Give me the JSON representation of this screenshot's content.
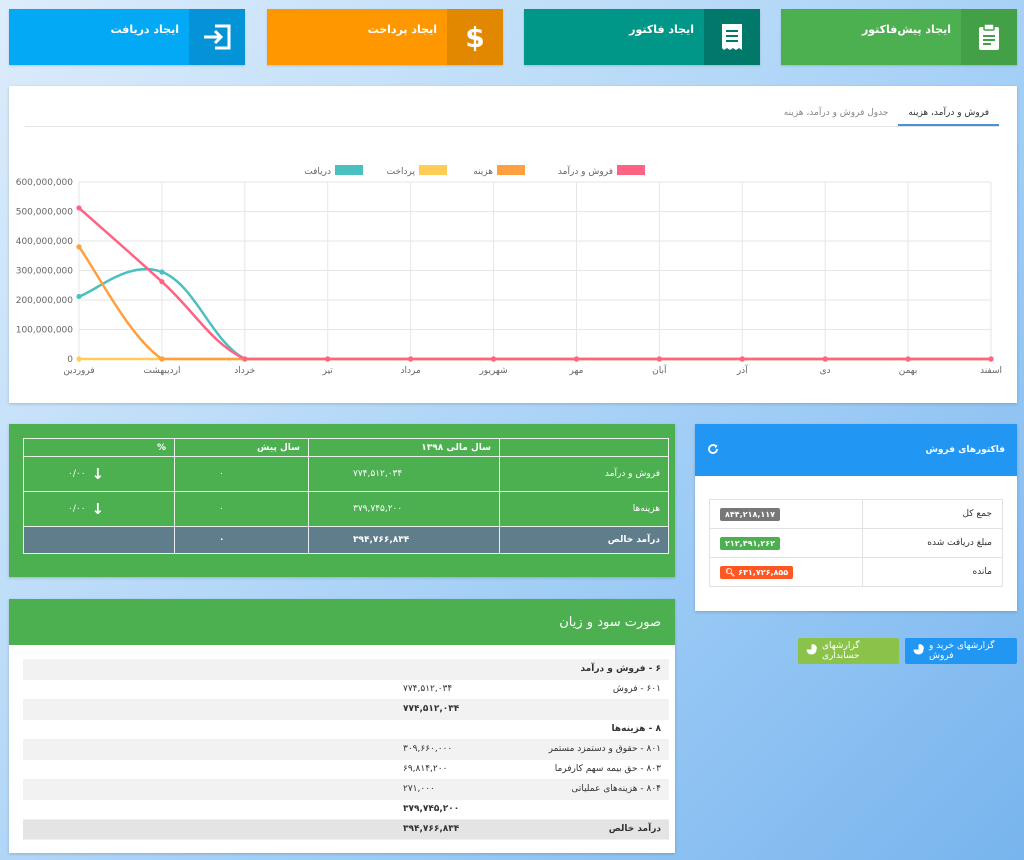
{
  "quick_actions": {
    "create_proforma": {
      "label": "ایجاد پیش‌فاکتور",
      "icon": "clipboard-icon"
    },
    "create_invoice": {
      "label": "ایجاد فاکتور",
      "icon": "receipt-icon"
    },
    "create_payment": {
      "label": "ایجاد پرداخت",
      "icon": "dollar-icon"
    },
    "create_receipt": {
      "label": "ایجاد دریافت",
      "icon": "sign-in-icon"
    }
  },
  "chart_tabs": [
    "فروش و درآمد، هزینه",
    "جدول فروش و درآمد، هزینه"
  ],
  "chart_data": {
    "type": "line",
    "categories": [
      "فروردین",
      "اردیبهشت",
      "خرداد",
      "تیر",
      "مرداد",
      "شهریور",
      "مهر",
      "آبان",
      "آذر",
      "دی",
      "بهمن",
      "اسفند"
    ],
    "ylim": [
      0,
      600000000
    ],
    "y_ticks": [
      "0",
      "100,000,000",
      "200,000,000",
      "300,000,000",
      "400,000,000",
      "500,000,000",
      "600,000,000"
    ],
    "grid": true,
    "legend_position": "top",
    "series": [
      {
        "name": "فروش و درآمد",
        "color": "#ff6384",
        "values": [
          512000000,
          262000000,
          0,
          0,
          0,
          0,
          0,
          0,
          0,
          0,
          0,
          0
        ]
      },
      {
        "name": "هزینه",
        "color": "#ff9f40",
        "values": [
          380000000,
          0,
          0,
          0,
          0,
          0,
          0,
          0,
          0,
          0,
          0,
          0
        ]
      },
      {
        "name": "پرداخت",
        "color": "#ffcd56",
        "values": [
          0,
          0,
          0,
          0,
          0,
          0,
          0,
          0,
          0,
          0,
          0,
          0
        ]
      },
      {
        "name": "دریافت",
        "color": "#4bc0c0",
        "values": [
          212000000,
          295000000,
          0,
          0,
          0,
          0,
          0,
          0,
          0,
          0,
          0,
          0
        ]
      }
    ]
  },
  "stats": {
    "headers": {
      "label": "",
      "current": "سال مالی ۱۳۹۸",
      "previous": "سال پیش",
      "percent": "%"
    },
    "rows": [
      {
        "label": "فروش و درآمد",
        "current": "۷۷۴,۵۱۲,۰۳۴",
        "previous": "۰",
        "percent": "۰/۰۰"
      },
      {
        "label": "هزینه‌ها",
        "current": "۳۷۹,۷۴۵,۲۰۰",
        "previous": "۰",
        "percent": "۰/۰۰"
      }
    ],
    "total": {
      "label": "درآمد خالص",
      "current": "۳۹۴,۷۶۶,۸۳۴",
      "previous": "۰",
      "percent": ""
    }
  },
  "invoices": {
    "title": "فاکتورهای فروش",
    "rows": [
      {
        "label": "جمع کل",
        "value": "۸۴۴,۲۱۸,۱۱۷"
      },
      {
        "label": "مبلغ دریافت شده",
        "value": "۲۱۲,۴۹۱,۲۶۲"
      },
      {
        "label": "مانده",
        "value": "۶۳۱,۷۲۶,۸۵۵"
      }
    ]
  },
  "reports": {
    "buy_sell": "گزارشهای خرید و فروش",
    "accounting": "گزارشهای حسابداری"
  },
  "profit_loss": {
    "title": "صورت سود و زیان",
    "rows": [
      {
        "label": "۶ - فروش و درآمد",
        "value": "",
        "style": "bold grey"
      },
      {
        "label": "۶۰۱ - فروش",
        "value": "۷۷۴,۵۱۲,۰۳۴",
        "style": ""
      },
      {
        "label": "",
        "value": "۷۷۴,۵۱۲,۰۳۴",
        "style": "bold grey"
      },
      {
        "label": "۸ - هزینه‌ها",
        "value": "",
        "style": "bold"
      },
      {
        "label": "۸۰۱ - حقوق و دستمزد مستمر",
        "value": "۳۰۹,۶۶۰,۰۰۰",
        "style": "grey"
      },
      {
        "label": "۸۰۳ - حق بیمه سهم کارفرما",
        "value": "۶۹,۸۱۴,۲۰۰",
        "style": ""
      },
      {
        "label": "۸۰۴ - هزینه‌های عملیاتی",
        "value": "۲۷۱,۰۰۰",
        "style": "grey"
      },
      {
        "label": "",
        "value": "۳۷۹,۷۴۵,۲۰۰",
        "style": "bold"
      },
      {
        "label": "درآمد خالص",
        "value": "۳۹۴,۷۶۶,۸۳۴",
        "style": "net"
      }
    ]
  }
}
